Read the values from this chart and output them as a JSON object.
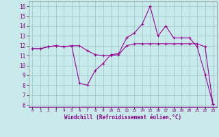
{
  "xlabel": "Windchill (Refroidissement éolien,°C)",
  "background_color": "#c8eaea",
  "grid_color": "#a0cccc",
  "line_color": "#990099",
  "xlim": [
    -0.5,
    23.5
  ],
  "ylim": [
    5.8,
    16.5
  ],
  "xticks": [
    0,
    1,
    2,
    3,
    4,
    5,
    6,
    7,
    8,
    9,
    10,
    11,
    12,
    13,
    14,
    15,
    16,
    17,
    18,
    19,
    20,
    21,
    22,
    23
  ],
  "yticks": [
    6,
    7,
    8,
    9,
    10,
    11,
    12,
    13,
    14,
    15,
    16
  ],
  "series1_x": [
    0,
    1,
    2,
    3,
    4,
    5,
    6,
    7,
    8,
    9,
    10,
    11,
    12,
    13,
    14,
    15,
    16,
    17,
    18,
    19,
    20,
    21,
    22,
    23
  ],
  "series1_y": [
    11.7,
    11.7,
    11.9,
    12.0,
    11.9,
    12.0,
    12.0,
    11.5,
    11.1,
    11.0,
    11.0,
    11.1,
    12.0,
    12.2,
    12.2,
    12.2,
    12.2,
    12.2,
    12.2,
    12.2,
    12.2,
    12.2,
    11.9,
    6.1
  ],
  "series2_x": [
    0,
    1,
    2,
    3,
    4,
    5,
    6,
    7,
    8,
    9,
    10,
    11,
    12,
    13,
    14,
    15,
    16,
    17,
    18,
    19,
    20,
    21,
    22,
    23
  ],
  "series2_y": [
    11.7,
    11.7,
    11.9,
    12.0,
    11.9,
    12.0,
    8.2,
    8.0,
    9.5,
    10.2,
    11.1,
    11.2,
    12.8,
    13.3,
    14.2,
    16.0,
    13.0,
    14.0,
    12.8,
    12.8,
    12.8,
    11.9,
    9.1,
    6.1
  ]
}
